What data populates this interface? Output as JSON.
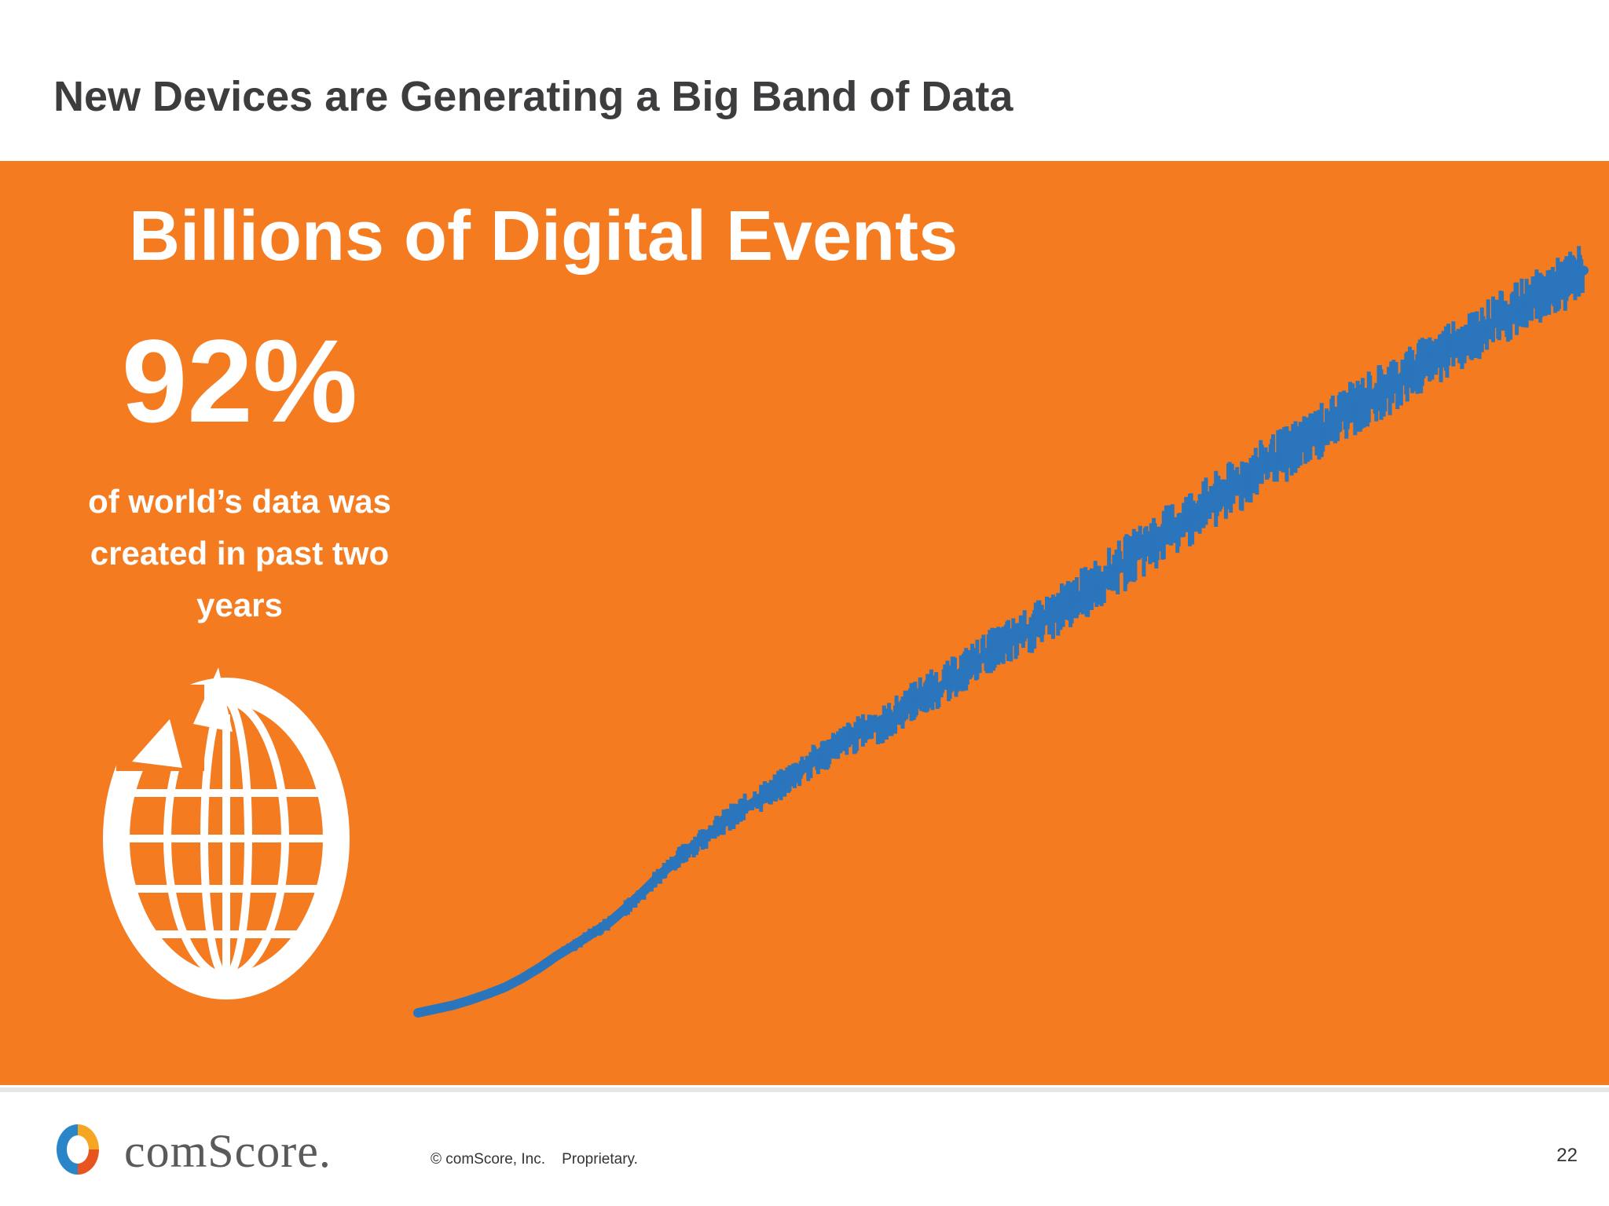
{
  "slide": {
    "title": "New Devices are Generating a Big Band of Data",
    "heading": "Billions of Digital Events",
    "stat_value": "92%",
    "stat_caption_lines": [
      "of world’s data was",
      "created in past two",
      "years"
    ],
    "page_number": "22"
  },
  "footer": {
    "brand": "comScore.",
    "copyright": "© comScore, Inc.    Proprietary."
  },
  "icons": {
    "globe": "globe-with-arrows-icon",
    "logo": "comscore-logo-icon"
  },
  "colors": {
    "panel": "#f47b20",
    "line": "#2a75bb",
    "text_dark": "#3d3d3f",
    "white": "#ffffff"
  },
  "chart_data": {
    "type": "line",
    "title": "",
    "xlabel": "",
    "ylabel": "",
    "grid": false,
    "legend": "none",
    "series": [
      {
        "values": [
          0.0,
          0.5,
          1.0,
          1.7,
          2.5,
          3.4,
          4.6,
          6.0,
          7.6,
          9.0,
          10.5,
          12.0,
          14.0,
          16.2,
          18.5,
          20.5,
          22.5,
          24.2,
          26.0,
          27.5,
          29.0,
          30.5,
          32.2,
          33.8,
          35.3,
          36.6,
          37.7,
          38.6,
          40.5,
          42.3,
          43.2,
          44.8,
          46.5,
          48.0,
          49.2,
          50.4,
          52.0,
          53.6,
          55.2,
          56.9,
          58.5,
          60.2,
          62.0,
          63.5,
          65.1,
          66.8,
          68.3,
          69.8,
          71.5,
          73.0,
          74.3,
          75.9,
          77.5,
          79.0,
          80.5,
          82.0,
          83.3,
          84.8,
          86.3,
          87.8,
          89.1,
          90.3,
          91.7,
          93.0,
          94.4,
          95.8,
          97.0,
          98.5
        ]
      }
    ]
  }
}
